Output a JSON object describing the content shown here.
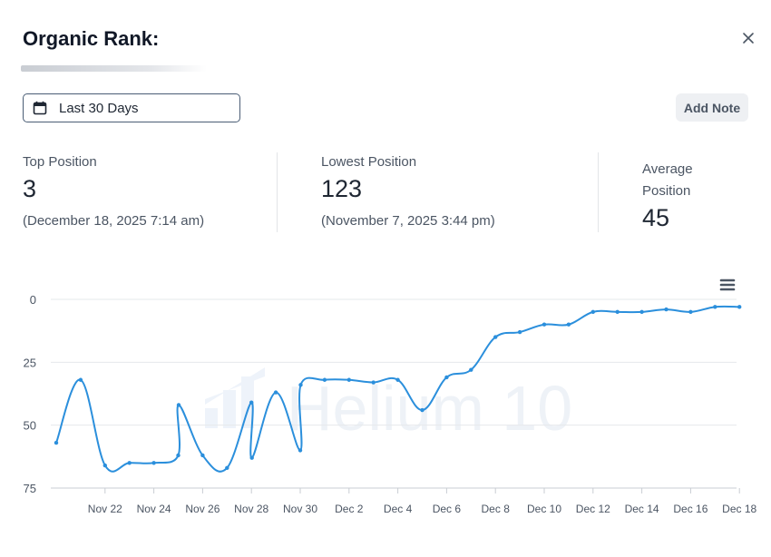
{
  "header": {
    "title": "Organic Rank:"
  },
  "controls": {
    "date_range_label": "Last 30 Days",
    "add_note_label": "Add Note"
  },
  "stats": {
    "top": {
      "label": "Top Position",
      "value": "3",
      "date": "(December 18, 2025 7:14 am)"
    },
    "lowest": {
      "label": "Lowest Position",
      "value": "123",
      "date": "(November 7, 2025 3:44 pm)"
    },
    "average": {
      "label_line1": "Average",
      "label_line2": "Position",
      "value": "45"
    }
  },
  "watermark": "Helium 10",
  "colors": {
    "line": "#2b8fdc",
    "grid": "#e6e8eb",
    "text": "#4b5563"
  },
  "icons": {
    "close": "close-icon",
    "calendar": "calendar-icon",
    "menu": "hamburger-menu-icon"
  },
  "chart_data": {
    "type": "line",
    "title": "",
    "xlabel": "",
    "ylabel": "",
    "y_reversed": true,
    "ylim": [
      0,
      75
    ],
    "yticks": [
      0,
      25,
      50,
      75
    ],
    "xticks": [
      "Nov 22",
      "Nov 24",
      "Nov 26",
      "Nov 28",
      "Nov 30",
      "Dec 2",
      "Dec 4",
      "Dec 6",
      "Dec 8",
      "Dec 10",
      "Dec 12",
      "Dec 14",
      "Dec 16",
      "Dec 18"
    ],
    "x_first_date": "Nov 20",
    "grid": true,
    "series": [
      {
        "x": [
          "Nov 20",
          "Nov 21",
          "Nov 22",
          "Nov 23",
          "Nov 24",
          "Nov 25",
          "Nov 25",
          "Nov 26",
          "Nov 27",
          "Nov 28",
          "Nov 28",
          "Nov 29",
          "Nov 30",
          "Nov 30",
          "Dec 1",
          "Dec 2",
          "Dec 3",
          "Dec 4",
          "Dec 5",
          "Dec 6",
          "Dec 7",
          "Dec 8",
          "Dec 9",
          "Dec 10",
          "Dec 11",
          "Dec 12",
          "Dec 13",
          "Dec 14",
          "Dec 15",
          "Dec 16",
          "Dec 17",
          "Dec 18"
        ],
        "values": [
          57,
          32,
          66,
          65,
          65,
          62,
          42,
          62,
          67,
          41,
          63,
          37,
          60,
          34,
          32,
          32,
          33,
          32,
          44,
          31,
          28,
          15,
          13,
          10,
          10,
          5,
          5,
          5,
          4,
          5,
          3,
          3
        ]
      }
    ]
  }
}
